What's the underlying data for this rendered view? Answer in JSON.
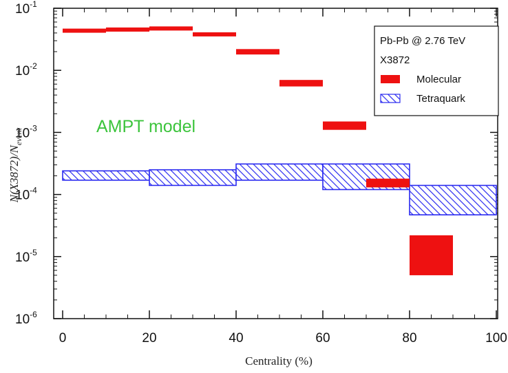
{
  "chart_data": {
    "type": "bar",
    "xlabel": "Centrality (%)",
    "ylabel": "N(X3872)/N_event",
    "ylabel_main": "N(X3872)/N",
    "ylabel_sub": "event",
    "xlim": [
      0,
      100
    ],
    "ylim": [
      1e-06,
      0.1
    ],
    "yscale": "log",
    "x_ticks": [
      "0",
      "20",
      "40",
      "60",
      "80",
      "100"
    ],
    "y_ticks": [
      {
        "base": "10",
        "exp": "-1"
      },
      {
        "base": "10",
        "exp": "-2"
      },
      {
        "base": "10",
        "exp": "-3"
      },
      {
        "base": "10",
        "exp": "-4"
      },
      {
        "base": "10",
        "exp": "-5"
      },
      {
        "base": "10",
        "exp": "-6"
      }
    ],
    "legend": {
      "position": "top-right",
      "title_line1": "Pb-Pb @ 2.76 TeV",
      "title_line2": "X3872",
      "entries": [
        "Molecular",
        "Tetraquark"
      ]
    },
    "annotation": "AMPT model",
    "colors": {
      "molecular": "#ee1111",
      "tetraquark": "#2a2af0"
    },
    "series": [
      {
        "name": "Molecular",
        "bins": [
          {
            "x0": 0,
            "x1": 10,
            "low": 0.042,
            "high": 0.047
          },
          {
            "x0": 10,
            "x1": 20,
            "low": 0.044,
            "high": 0.049
          },
          {
            "x0": 20,
            "x1": 30,
            "low": 0.046,
            "high": 0.051
          },
          {
            "x0": 30,
            "x1": 40,
            "low": 0.037,
            "high": 0.041
          },
          {
            "x0": 40,
            "x1": 50,
            "low": 0.018,
            "high": 0.022
          },
          {
            "x0": 50,
            "x1": 60,
            "low": 0.0055,
            "high": 0.007
          },
          {
            "x0": 60,
            "x1": 70,
            "low": 0.0011,
            "high": 0.0015
          },
          {
            "x0": 70,
            "x1": 80,
            "low": 0.00013,
            "high": 0.00018
          },
          {
            "x0": 80,
            "x1": 90,
            "low": 5e-06,
            "high": 2.2e-05
          }
        ]
      },
      {
        "name": "Tetraquark",
        "bins": [
          {
            "x0": 0,
            "x1": 20,
            "low": 0.00017,
            "high": 0.00024
          },
          {
            "x0": 20,
            "x1": 40,
            "low": 0.00014,
            "high": 0.00025
          },
          {
            "x0": 40,
            "x1": 60,
            "low": 0.00017,
            "high": 0.00031
          },
          {
            "x0": 60,
            "x1": 80,
            "low": 0.00012,
            "high": 0.00031
          },
          {
            "x0": 80,
            "x1": 100,
            "low": 4.7e-05,
            "high": 0.00014
          }
        ]
      }
    ]
  }
}
